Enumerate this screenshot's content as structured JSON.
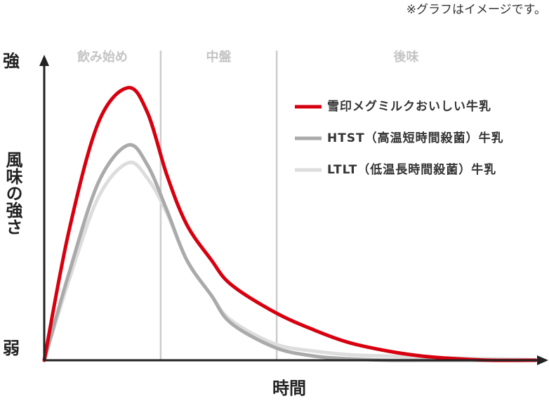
{
  "chart_data": {
    "type": "line",
    "note": "※グラフはイメージです。",
    "y_label": "風味の強さ",
    "y_high_label": "強",
    "y_low_label": "弱",
    "x_label": "時間",
    "phases": [
      "飲み始め",
      "中盤",
      "後味"
    ],
    "dividers": [
      23.7,
      47.3
    ],
    "x": [
      0,
      5,
      11,
      17,
      21,
      25,
      29,
      34,
      38,
      47,
      55,
      62,
      70,
      77,
      84,
      91,
      100
    ],
    "xlim": [
      0,
      100
    ],
    "ylim": [
      0,
      100
    ],
    "series": [
      {
        "name": "雪印メグミルクおいしい牛乳",
        "color": "#d7000f",
        "values": [
          0,
          43.6,
          80.5,
          92.4,
          84,
          62.6,
          46,
          34,
          25.7,
          16.2,
          10.2,
          6,
          3.1,
          1.4,
          0.5,
          0,
          0
        ]
      },
      {
        "name": "HTST（高温短時間殺菌）牛乳",
        "color": "#aaaaaa",
        "values": [
          0,
          29.3,
          60.2,
          72.9,
          66.2,
          50.7,
          34,
          22,
          12.6,
          4.3,
          1.4,
          0.5,
          0,
          0,
          0,
          0,
          0
        ]
      },
      {
        "name": "LTLT（低温長時間殺菌）牛乳",
        "color": "#dddddd",
        "values": [
          0,
          26.9,
          55.2,
          66.9,
          61.7,
          49.8,
          34,
          22,
          13.6,
          5.5,
          3.1,
          1.9,
          1.4,
          1,
          0.7,
          0.5,
          0.2
        ]
      }
    ]
  }
}
